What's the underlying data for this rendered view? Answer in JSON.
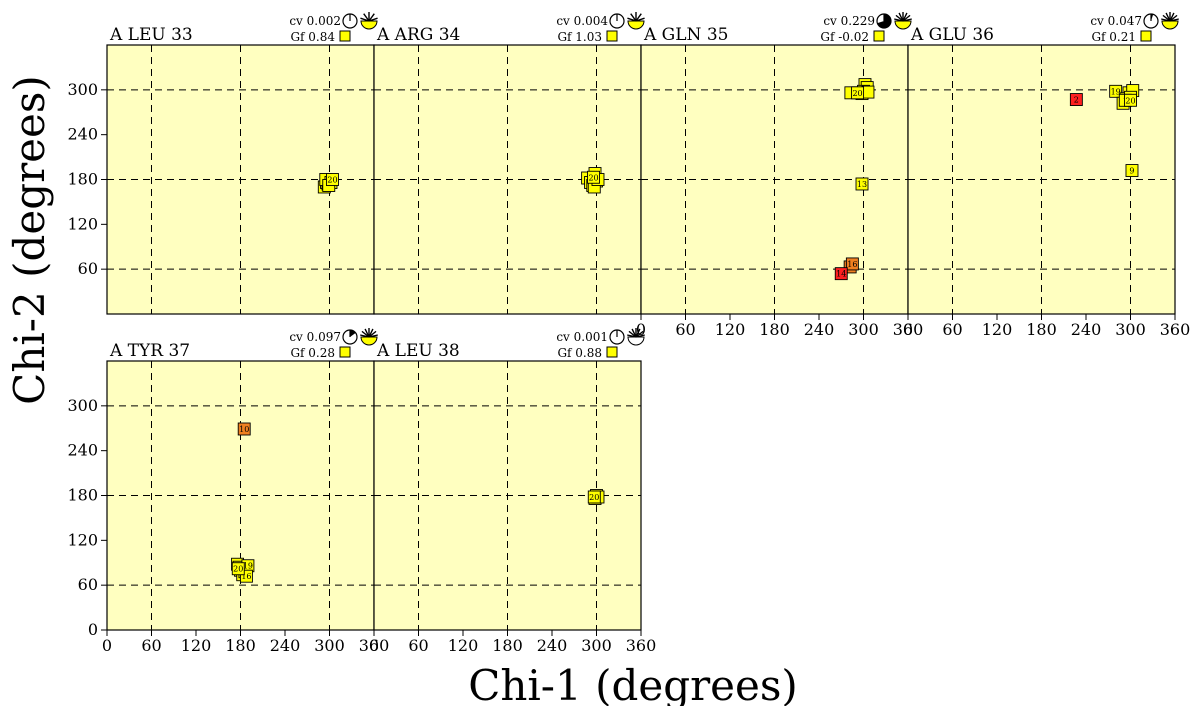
{
  "chart_data": {
    "type": "scatter",
    "ylabel": "Chi-2 (degrees)",
    "xlabel": "Chi-1 (degrees)",
    "xlim": [
      0,
      360
    ],
    "ylim": [
      0,
      360
    ],
    "x_ticks": [
      0,
      60,
      120,
      180,
      240,
      300,
      360
    ],
    "y_ticks": [
      0,
      60,
      120,
      180,
      240,
      300
    ],
    "grid_lines": [
      60,
      180,
      300
    ],
    "colors": {
      "plot_bg": "#ffffc0",
      "yellow": "#ffff00",
      "orange": "#f08020",
      "red": "#ff2020",
      "grid": "#000000"
    },
    "panels": [
      {
        "title": "A LEU 33",
        "cv_label": "cv",
        "cv": "0.002",
        "gf_label": "Gf",
        "gf": "0.84",
        "clock_fraction": 0.02,
        "starburst": "weak",
        "points": [
          {
            "x": 293,
            "y": 170,
            "color": "yellow",
            "label": ""
          },
          {
            "x": 296,
            "y": 176,
            "color": "yellow",
            "label": ""
          },
          {
            "x": 298,
            "y": 174,
            "color": "yellow",
            "label": ""
          },
          {
            "x": 300,
            "y": 178,
            "color": "yellow",
            "label": ""
          },
          {
            "x": 295,
            "y": 180,
            "color": "yellow",
            "label": ""
          },
          {
            "x": 302,
            "y": 176,
            "color": "yellow",
            "label": "1"
          },
          {
            "x": 299,
            "y": 172,
            "color": "yellow",
            "label": ""
          },
          {
            "x": 304,
            "y": 180,
            "color": "yellow",
            "label": "20"
          }
        ]
      },
      {
        "title": "A ARG 34",
        "cv_label": "cv",
        "cv": "0.004",
        "gf_label": "Gf",
        "gf": "1.03",
        "clock_fraction": 0.02,
        "starburst": "weak",
        "points": [
          {
            "x": 288,
            "y": 182,
            "color": "yellow",
            "label": ""
          },
          {
            "x": 292,
            "y": 176,
            "color": "yellow",
            "label": ""
          },
          {
            "x": 295,
            "y": 172,
            "color": "yellow",
            "label": ""
          },
          {
            "x": 298,
            "y": 188,
            "color": "yellow",
            "label": ""
          },
          {
            "x": 300,
            "y": 178,
            "color": "yellow",
            "label": ""
          },
          {
            "x": 297,
            "y": 170,
            "color": "yellow",
            "label": ""
          },
          {
            "x": 302,
            "y": 180,
            "color": "yellow",
            "label": "1"
          },
          {
            "x": 296,
            "y": 183,
            "color": "yellow",
            "label": "20"
          }
        ]
      },
      {
        "title": "A GLN 35",
        "cv_label": "cv",
        "cv": "0.229",
        "gf_label": "Gf",
        "gf": "-0.02",
        "clock_fraction": 0.7,
        "starburst": "medium",
        "points": [
          {
            "x": 302,
            "y": 307,
            "color": "yellow",
            "label": ""
          },
          {
            "x": 305,
            "y": 303,
            "color": "yellow",
            "label": ""
          },
          {
            "x": 300,
            "y": 298,
            "color": "yellow",
            "label": ""
          },
          {
            "x": 298,
            "y": 295,
            "color": "yellow",
            "label": ""
          },
          {
            "x": 306,
            "y": 297,
            "color": "yellow",
            "label": ""
          },
          {
            "x": 283,
            "y": 296,
            "color": "yellow",
            "label": ""
          },
          {
            "x": 292,
            "y": 296,
            "color": "yellow",
            "label": "20"
          },
          {
            "x": 298,
            "y": 174,
            "color": "yellow",
            "label": "13"
          },
          {
            "x": 282,
            "y": 63,
            "color": "orange",
            "label": ""
          },
          {
            "x": 285,
            "y": 67,
            "color": "orange",
            "label": "16"
          },
          {
            "x": 270,
            "y": 54,
            "color": "red",
            "label": "14"
          }
        ]
      },
      {
        "title": "A GLU 36",
        "cv_label": "cv",
        "cv": "0.047",
        "gf_label": "Gf",
        "gf": "0.21",
        "clock_fraction": 0.05,
        "starburst": "medium",
        "points": [
          {
            "x": 227,
            "y": 287,
            "color": "red",
            "label": "2"
          },
          {
            "x": 280,
            "y": 298,
            "color": "yellow",
            "label": "19"
          },
          {
            "x": 298,
            "y": 296,
            "color": "yellow",
            "label": ""
          },
          {
            "x": 303,
            "y": 299,
            "color": "yellow",
            "label": ""
          },
          {
            "x": 294,
            "y": 288,
            "color": "yellow",
            "label": ""
          },
          {
            "x": 300,
            "y": 290,
            "color": "yellow",
            "label": ""
          },
          {
            "x": 290,
            "y": 282,
            "color": "yellow",
            "label": ""
          },
          {
            "x": 293,
            "y": 286,
            "color": "yellow",
            "label": "1"
          },
          {
            "x": 300,
            "y": 286,
            "color": "yellow",
            "label": "20"
          },
          {
            "x": 302,
            "y": 192,
            "color": "yellow",
            "label": "9"
          }
        ]
      },
      {
        "title": "A TYR 37",
        "cv_label": "cv",
        "cv": "0.097",
        "gf_label": "Gf",
        "gf": "0.28",
        "clock_fraction": 0.15,
        "starburst": "medium",
        "points": [
          {
            "x": 185,
            "y": 269,
            "color": "orange",
            "label": "10"
          },
          {
            "x": 176,
            "y": 88,
            "color": "yellow",
            "label": ""
          },
          {
            "x": 180,
            "y": 80,
            "color": "yellow",
            "label": ""
          },
          {
            "x": 183,
            "y": 74,
            "color": "yellow",
            "label": ""
          },
          {
            "x": 178,
            "y": 84,
            "color": "yellow",
            "label": ""
          },
          {
            "x": 186,
            "y": 78,
            "color": "yellow",
            "label": ""
          },
          {
            "x": 190,
            "y": 86,
            "color": "yellow",
            "label": "19"
          },
          {
            "x": 188,
            "y": 72,
            "color": "yellow",
            "label": "16"
          },
          {
            "x": 177,
            "y": 82,
            "color": "yellow",
            "label": "20"
          }
        ]
      },
      {
        "title": "A LEU 38",
        "cv_label": "cv",
        "cv": "0.001",
        "gf_label": "Gf",
        "gf": "0.88",
        "clock_fraction": 0.01,
        "starburst": "dark",
        "points": [
          {
            "x": 298,
            "y": 176,
            "color": "yellow",
            "label": ""
          },
          {
            "x": 300,
            "y": 180,
            "color": "yellow",
            "label": ""
          },
          {
            "x": 302,
            "y": 178,
            "color": "yellow",
            "label": ""
          },
          {
            "x": 297,
            "y": 178,
            "color": "yellow",
            "label": "20"
          }
        ]
      }
    ]
  }
}
